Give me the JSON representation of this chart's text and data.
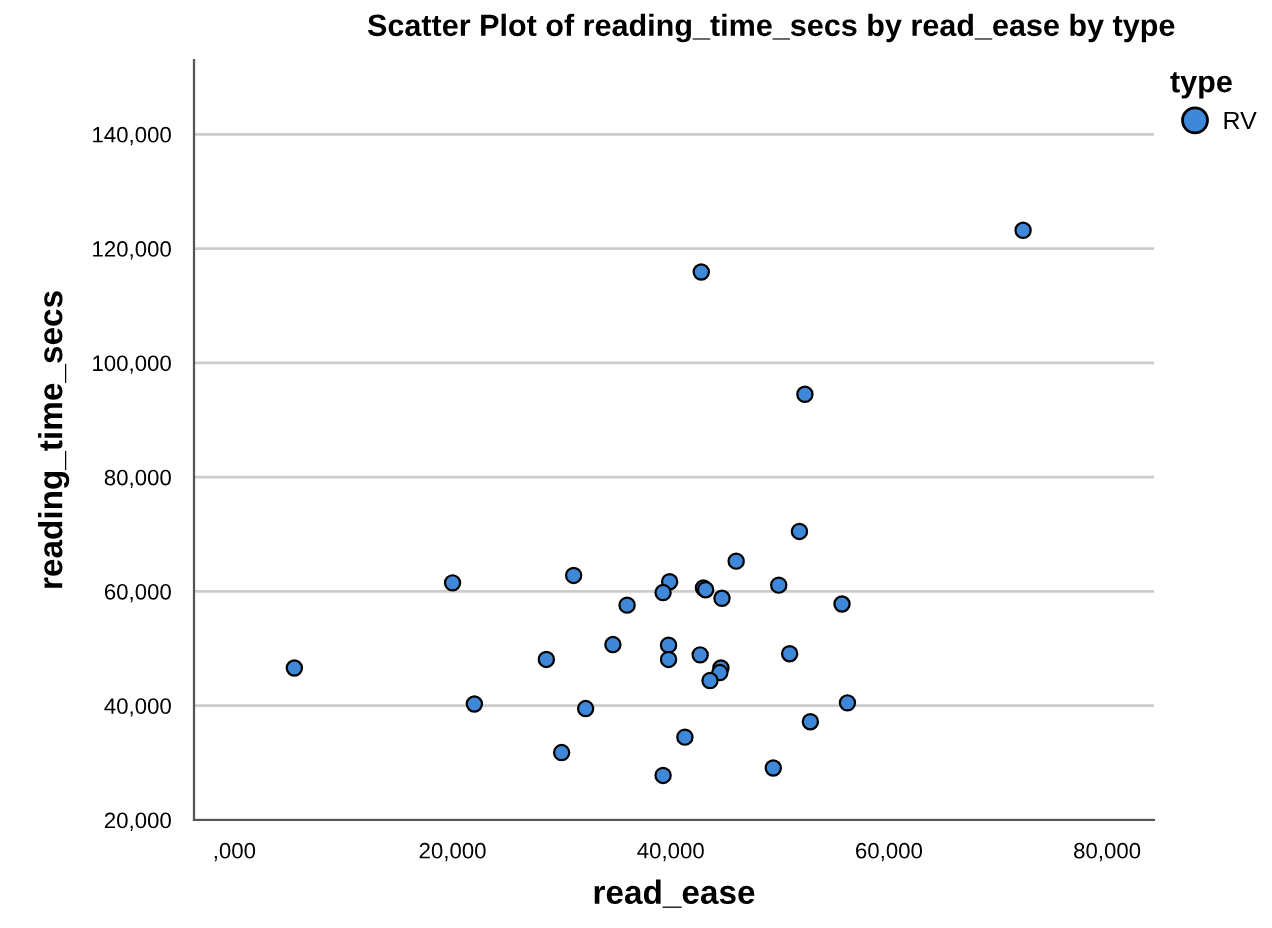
{
  "chart_data": {
    "type": "scatter",
    "title": "Scatter Plot of reading_time_secs by read_ease by type",
    "xlabel": "read_ease",
    "ylabel": "reading_time_secs",
    "legend_title": "type",
    "series": [
      {
        "name": "RV",
        "color": "#3f87d8",
        "x": [
          72300,
          42800,
          52300,
          51800,
          46000,
          20000,
          31100,
          39900,
          39300,
          43000,
          43200,
          44700,
          49900,
          55700,
          36000,
          34700,
          39800,
          39800,
          28600,
          42700,
          50900,
          44600,
          44500,
          43600,
          5500,
          22000,
          32200,
          56200,
          52800,
          41300,
          30000,
          39300,
          49400
        ],
        "values": [
          123200,
          115900,
          94500,
          70500,
          65300,
          61500,
          62800,
          61700,
          59800,
          60600,
          60300,
          58800,
          61100,
          57800,
          57600,
          50700,
          50600,
          48100,
          48100,
          48900,
          49100,
          46600,
          45800,
          44400,
          46600,
          40300,
          39500,
          40500,
          37200,
          34500,
          31800,
          27800,
          29100
        ]
      }
    ],
    "xlim": [
      -3700,
      84300
    ],
    "ylim": [
      20000,
      153000
    ],
    "xticks": [
      {
        "value": 0,
        "label": ",000"
      },
      {
        "value": 20000,
        "label": "20,000"
      },
      {
        "value": 40000,
        "label": "40,000"
      },
      {
        "value": 60000,
        "label": "60,000"
      },
      {
        "value": 80000,
        "label": "80,000"
      }
    ],
    "yticks": [
      {
        "value": 20000,
        "label": "20,000"
      },
      {
        "value": 40000,
        "label": "40,000"
      },
      {
        "value": 60000,
        "label": "60,000"
      },
      {
        "value": 80000,
        "label": "80,000"
      },
      {
        "value": 100000,
        "label": "100,000"
      },
      {
        "value": 120000,
        "label": "120,000"
      },
      {
        "value": 140000,
        "label": "140,000"
      }
    ],
    "grid": "y",
    "legend": "top right",
    "marker": "circle"
  }
}
